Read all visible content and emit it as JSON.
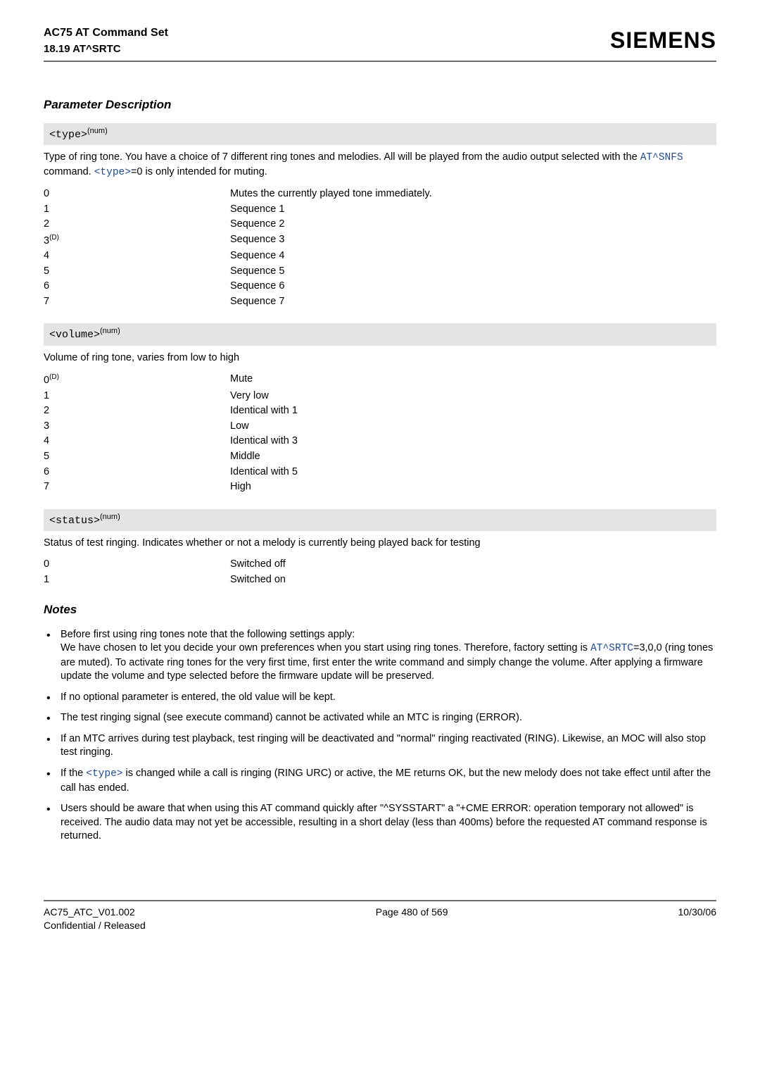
{
  "header": {
    "title": "AC75 AT Command Set",
    "subtitle": "18.19 AT^SRTC",
    "brand": "SIEMENS"
  },
  "paramDescTitle": "Parameter Description",
  "typeParam": {
    "label": "<type>",
    "sup": "(num)",
    "desc_pre": "Type of ring tone. You have a choice of 7 different ring tones and melodies. All will be played from the audio output selected with the ",
    "desc_link1": "AT^SNFS",
    "desc_mid": " command. ",
    "desc_link2": "<type>",
    "desc_post": "=0 is only intended for muting.",
    "rows": [
      {
        "k": "0",
        "v": "Mutes the currently played tone immediately."
      },
      {
        "k": "1",
        "v": "Sequence 1"
      },
      {
        "k": "2",
        "v": "Sequence 2"
      },
      {
        "k": "3(D)",
        "v": "Sequence 3",
        "hasSup": true,
        "kBase": "3",
        "kSup": "(D)"
      },
      {
        "k": "4",
        "v": "Sequence 4"
      },
      {
        "k": "5",
        "v": "Sequence 5"
      },
      {
        "k": "6",
        "v": "Sequence 6"
      },
      {
        "k": "7",
        "v": "Sequence 7"
      }
    ]
  },
  "volumeParam": {
    "label": "<volume>",
    "sup": "(num)",
    "desc": "Volume of ring tone, varies from low to high",
    "rows": [
      {
        "k": "0(D)",
        "v": "Mute",
        "hasSup": true,
        "kBase": "0",
        "kSup": "(D)"
      },
      {
        "k": "1",
        "v": "Very low"
      },
      {
        "k": "2",
        "v": "Identical with 1"
      },
      {
        "k": "3",
        "v": "Low"
      },
      {
        "k": "4",
        "v": "Identical with 3"
      },
      {
        "k": "5",
        "v": "Middle"
      },
      {
        "k": "6",
        "v": "Identical with 5"
      },
      {
        "k": "7",
        "v": "High"
      }
    ]
  },
  "statusParam": {
    "label": "<status>",
    "sup": "(num)",
    "desc": "Status of test ringing. Indicates whether or not a melody is currently being played back for testing",
    "rows": [
      {
        "k": "0",
        "v": "Switched off"
      },
      {
        "k": "1",
        "v": "Switched on"
      }
    ]
  },
  "notesTitle": "Notes",
  "notes": {
    "n1_pre": "Before first using ring tones note that the following settings apply:",
    "n1_body_a": "We have chosen to let you decide your own preferences when you start using ring tones. Therefore, factory setting is ",
    "n1_link": "AT^SRTC",
    "n1_body_b": "=3,0,0 (ring tones are muted). To activate ring tones for the very first time, first enter the write command and simply change the volume. After applying a firmware update the volume and type selected before the firmware update will be preserved.",
    "n2": "If no optional parameter is entered, the old value will be kept.",
    "n3": "The test ringing signal (see execute command) cannot be activated while an MTC is ringing (ERROR).",
    "n4": "If an MTC arrives during test playback, test ringing will be deactivated and \"normal\" ringing reactivated (RING). Likewise, an MOC will also stop test ringing.",
    "n5_a": "If the ",
    "n5_link": "<type>",
    "n5_b": " is changed while a call is ringing (RING URC) or active, the ME returns OK, but the new melody does not take effect until after the call has ended.",
    "n6": "Users should be aware that when using this AT command quickly after \"^SYSSTART\" a \"+CME ERROR: operation temporary not allowed\" is received. The audio data may not yet be accessible, resulting in a short delay (less than 400ms) before the requested AT command response is returned."
  },
  "footer": {
    "left1": "AC75_ATC_V01.002",
    "left2": "Confidential / Released",
    "center": "Page 480 of 569",
    "right": "10/30/06"
  }
}
